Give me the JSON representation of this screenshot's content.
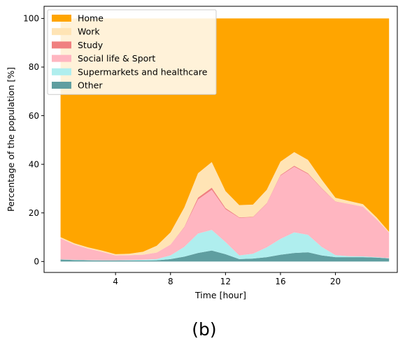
{
  "caption": "(b)",
  "chart_data": {
    "type": "area",
    "stacked": true,
    "xlabel": "Time [hour]",
    "ylabel": "Percentage of the population [%]",
    "xlim": [
      -1.2,
      24.5
    ],
    "ylim": [
      -4.5,
      105
    ],
    "xticks": [
      4,
      8,
      12,
      16,
      20
    ],
    "yticks": [
      0,
      20,
      40,
      60,
      80,
      100
    ],
    "legend_position": "top-left",
    "x": [
      0,
      1,
      2,
      3,
      4,
      5,
      6,
      7,
      8,
      9,
      10,
      11,
      12,
      13,
      14,
      15,
      16,
      17,
      18,
      19,
      20,
      21,
      22,
      23,
      23.9
    ],
    "series": [
      {
        "name": "Other",
        "color": "#5f9ea0",
        "values": [
          0.8,
          0.6,
          0.5,
          0.4,
          0.4,
          0.4,
          0.4,
          0.5,
          1.0,
          2.0,
          3.5,
          4.5,
          3.0,
          1.0,
          1.2,
          1.8,
          2.8,
          3.5,
          3.8,
          2.5,
          1.8,
          1.8,
          1.8,
          1.6,
          1.3
        ]
      },
      {
        "name": "Supermarkets and healthcare",
        "color": "#afeeee",
        "values": [
          0.1,
          0.1,
          0.1,
          0.1,
          0.1,
          0.2,
          0.3,
          0.5,
          1.5,
          4.0,
          8.0,
          8.5,
          5.0,
          1.5,
          2.0,
          4.0,
          6.5,
          8.5,
          7.2,
          3.5,
          0.8,
          0.4,
          0.3,
          0.2,
          0.1
        ]
      },
      {
        "name": "Social life & Sport",
        "color": "#ffb6c1",
        "values": [
          8.6,
          6.3,
          4.7,
          3.5,
          2.0,
          2.0,
          2.1,
          2.7,
          4.5,
          8.0,
          14.0,
          16.5,
          13.5,
          15.5,
          15.0,
          18.0,
          26.0,
          27.0,
          25.0,
          24.0,
          22.0,
          21.5,
          20.5,
          15.5,
          10.5
        ]
      },
      {
        "name": "Study",
        "color": "#f08080",
        "values": [
          0,
          0,
          0,
          0,
          0,
          0,
          0,
          0,
          0,
          0.2,
          0.8,
          0.9,
          0.5,
          0.2,
          0.2,
          0.2,
          0.3,
          0.4,
          0.3,
          0.2,
          0.1,
          0,
          0,
          0,
          0
        ]
      },
      {
        "name": "Work",
        "color": "#ffe4b5",
        "values": [
          0.5,
          0.5,
          0.5,
          0.5,
          0.5,
          0.6,
          1.2,
          2.8,
          5.0,
          8.0,
          10.0,
          10.5,
          7.0,
          5.0,
          5.0,
          5.5,
          5.5,
          5.6,
          5.5,
          3.5,
          1.5,
          1.2,
          1.0,
          0.8,
          0.3
        ]
      },
      {
        "name": "Home",
        "color": "#ffa500",
        "values": [
          90.0,
          92.5,
          94.2,
          95.5,
          97.0,
          96.8,
          96.0,
          93.5,
          88.0,
          77.8,
          63.7,
          59.1,
          71.0,
          76.8,
          76.6,
          70.5,
          58.9,
          55.0,
          58.2,
          66.3,
          73.8,
          75.1,
          76.4,
          81.9,
          87.8
        ]
      }
    ],
    "legend_order": [
      "Home",
      "Work",
      "Study",
      "Social life & Sport",
      "Supermarkets and healthcare",
      "Other"
    ]
  }
}
